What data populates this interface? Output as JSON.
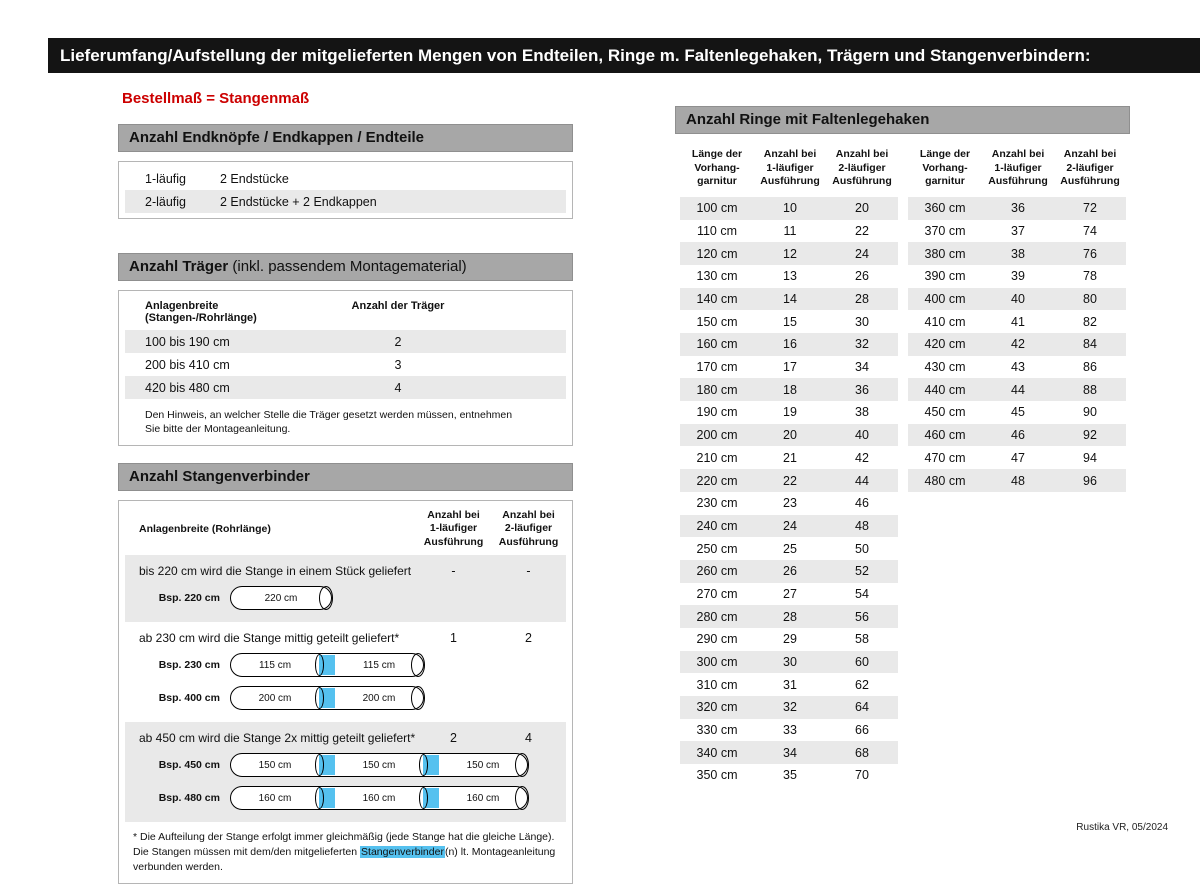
{
  "colors": {
    "bar": "#141414",
    "hdr": "#a7a7a7",
    "stripe": "#e9e9e9",
    "blue": "#55c1ef",
    "red": "#cc0000"
  },
  "page": {
    "title_bar": "Lieferumfang/Aufstellung der mitgelieferten Mengen von Endteilen, Ringe m. Faltenlegehaken, Trägern und Stangenverbindern:",
    "footer": "Rustika VR, 05/2024"
  },
  "left": {
    "subtitle": "Bestellmaß = Stangenmaß",
    "endpieces": {
      "header": "Anzahl Endknöpfe / Endkappen / Endteile",
      "rows": [
        {
          "type": "1-läufig",
          "content": "2 Endstücke"
        },
        {
          "type": "2-läufig",
          "content": "2 Endstücke + 2 Endkappen"
        }
      ]
    },
    "traeger": {
      "header_bold": "Anzahl Träger",
      "header_rest": " (inkl. passendem Montagematerial)",
      "col1": "Anlagenbreite (Stangen-/Rohrlänge)",
      "col2": "Anzahl der Träger",
      "rows": [
        {
          "range": "100 bis 190 cm",
          "count": "2"
        },
        {
          "range": "200 bis 410 cm",
          "count": "3"
        },
        {
          "range": "420 bis 480 cm",
          "count": "4"
        }
      ],
      "note": "Den Hinweis, an welcher Stelle die Träger gesetzt werden müssen, entnehmen Sie bitte der Montageanleitung."
    },
    "verbinder": {
      "header": "Anzahl Stangenverbinder",
      "col1": "Anlagenbreite (Rohrlänge)",
      "col2": "Anzahl bei\n1-läufiger\nAusführung",
      "col3": "Anzahl bei\n2-läufiger\nAusführung",
      "blocks": [
        {
          "text": "bis 220 cm wird die Stange in einem Stück geliefert",
          "count1": "-",
          "count2": "-",
          "rods": [
            {
              "label": "Bsp. 220 cm",
              "segments": [
                "220 cm"
              ]
            }
          ]
        },
        {
          "text": "ab 230 cm wird die Stange mittig geteilt geliefert*",
          "count1": "1",
          "count2": "2",
          "rods": [
            {
              "label": "Bsp. 230 cm",
              "segments": [
                "115 cm",
                "115 cm"
              ]
            },
            {
              "label": "Bsp. 400 cm",
              "segments": [
                "200 cm",
                "200 cm"
              ]
            }
          ]
        },
        {
          "text": "ab 450 cm wird die Stange 2x mittig geteilt geliefert*",
          "count1": "2",
          "count2": "4",
          "rods": [
            {
              "label": "Bsp. 450 cm",
              "segments": [
                "150 cm",
                "150 cm",
                "150 cm"
              ]
            },
            {
              "label": "Bsp. 480 cm",
              "segments": [
                "160 cm",
                "160 cm",
                "160 cm"
              ]
            }
          ]
        }
      ],
      "footnote_pre": "* Die Aufteilung der Stange erfolgt immer gleichmäßig (jede Stange hat die gleiche Länge). Die Stangen müssen mit dem/den mitgelieferten ",
      "footnote_highlight": "Stangenverbinder",
      "footnote_post": "(n) lt. Montageanleitung verbunden werden."
    }
  },
  "rings": {
    "header": "Anzahl Ringe mit Faltenlegehaken",
    "col1": "Länge der\nVorhang-\ngarnitur",
    "col2": "Anzahl bei\n1-läufiger\nAusführung",
    "col3": "Anzahl bei\n2-läufiger\nAusführung",
    "left_rows": [
      [
        "100 cm",
        "10",
        "20"
      ],
      [
        "110 cm",
        "11",
        "22"
      ],
      [
        "120 cm",
        "12",
        "24"
      ],
      [
        "130 cm",
        "13",
        "26"
      ],
      [
        "140 cm",
        "14",
        "28"
      ],
      [
        "150 cm",
        "15",
        "30"
      ],
      [
        "160 cm",
        "16",
        "32"
      ],
      [
        "170 cm",
        "17",
        "34"
      ],
      [
        "180 cm",
        "18",
        "36"
      ],
      [
        "190 cm",
        "19",
        "38"
      ],
      [
        "200 cm",
        "20",
        "40"
      ],
      [
        "210 cm",
        "21",
        "42"
      ],
      [
        "220 cm",
        "22",
        "44"
      ],
      [
        "230 cm",
        "23",
        "46"
      ],
      [
        "240 cm",
        "24",
        "48"
      ],
      [
        "250 cm",
        "25",
        "50"
      ],
      [
        "260 cm",
        "26",
        "52"
      ],
      [
        "270 cm",
        "27",
        "54"
      ],
      [
        "280 cm",
        "28",
        "56"
      ],
      [
        "290 cm",
        "29",
        "58"
      ],
      [
        "300 cm",
        "30",
        "60"
      ],
      [
        "310 cm",
        "31",
        "62"
      ],
      [
        "320 cm",
        "32",
        "64"
      ],
      [
        "330 cm",
        "33",
        "66"
      ],
      [
        "340 cm",
        "34",
        "68"
      ],
      [
        "350 cm",
        "35",
        "70"
      ]
    ],
    "right_rows": [
      [
        "360 cm",
        "36",
        "72"
      ],
      [
        "370 cm",
        "37",
        "74"
      ],
      [
        "380 cm",
        "38",
        "76"
      ],
      [
        "390 cm",
        "39",
        "78"
      ],
      [
        "400 cm",
        "40",
        "80"
      ],
      [
        "410 cm",
        "41",
        "82"
      ],
      [
        "420 cm",
        "42",
        "84"
      ],
      [
        "430 cm",
        "43",
        "86"
      ],
      [
        "440 cm",
        "44",
        "88"
      ],
      [
        "450 cm",
        "45",
        "90"
      ],
      [
        "460 cm",
        "46",
        "92"
      ],
      [
        "470 cm",
        "47",
        "94"
      ],
      [
        "480 cm",
        "48",
        "96"
      ]
    ]
  }
}
